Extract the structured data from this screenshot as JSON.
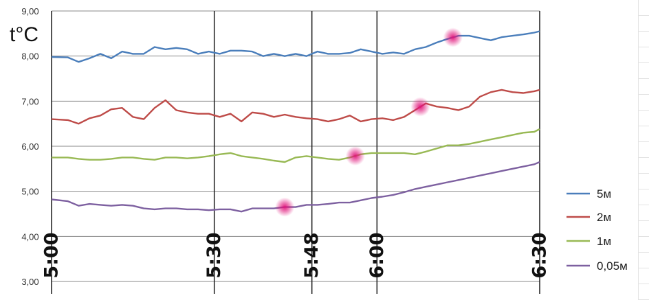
{
  "chart_data": {
    "type": "line",
    "unit_label": "t°C",
    "ylim": [
      3,
      9
    ],
    "y_ticks": [
      "3,00",
      "4,00",
      "5,00",
      "6,00",
      "7,00",
      "8,00",
      "9,00"
    ],
    "x_ticks": [
      {
        "t": 0,
        "label": "5:00"
      },
      {
        "t": 30,
        "label": "5:30"
      },
      {
        "t": 48,
        "label": "5:48"
      },
      {
        "t": 60,
        "label": "6:00"
      },
      {
        "t": 90,
        "label": "6:30"
      }
    ],
    "x": [
      0,
      3,
      5,
      7,
      9,
      11,
      13,
      15,
      17,
      19,
      21,
      23,
      25,
      27,
      29,
      31,
      33,
      35,
      37,
      39,
      41,
      43,
      45,
      47,
      49,
      51,
      53,
      55,
      57,
      59,
      61,
      63,
      65,
      67,
      69,
      71,
      73,
      75,
      77,
      79,
      81,
      83,
      85,
      87,
      89,
      90
    ],
    "series": [
      {
        "name": "5м",
        "color": "#4a7ebb",
        "values": [
          7.98,
          7.97,
          7.87,
          7.95,
          8.05,
          7.95,
          8.1,
          8.05,
          8.05,
          8.2,
          8.15,
          8.18,
          8.15,
          8.05,
          8.1,
          8.05,
          8.12,
          8.12,
          8.1,
          8.0,
          8.05,
          8.0,
          8.05,
          8.0,
          8.1,
          8.05,
          8.05,
          8.07,
          8.15,
          8.1,
          8.05,
          8.08,
          8.05,
          8.15,
          8.2,
          8.3,
          8.38,
          8.45,
          8.45,
          8.4,
          8.35,
          8.42,
          8.45,
          8.48,
          8.52,
          8.55
        ]
      },
      {
        "name": "2м",
        "color": "#be4b48",
        "values": [
          6.6,
          6.58,
          6.5,
          6.62,
          6.68,
          6.82,
          6.85,
          6.65,
          6.6,
          6.85,
          7.02,
          6.8,
          6.75,
          6.72,
          6.72,
          6.65,
          6.72,
          6.55,
          6.75,
          6.72,
          6.65,
          6.7,
          6.65,
          6.62,
          6.6,
          6.55,
          6.6,
          6.68,
          6.55,
          6.6,
          6.62,
          6.58,
          6.65,
          6.8,
          6.95,
          6.88,
          6.85,
          6.8,
          6.88,
          7.1,
          7.2,
          7.25,
          7.2,
          7.18,
          7.22,
          7.25
        ]
      },
      {
        "name": "1м",
        "color": "#98b954",
        "values": [
          5.75,
          5.75,
          5.72,
          5.7,
          5.7,
          5.72,
          5.75,
          5.75,
          5.72,
          5.7,
          5.75,
          5.75,
          5.73,
          5.75,
          5.78,
          5.82,
          5.85,
          5.78,
          5.75,
          5.72,
          5.68,
          5.65,
          5.75,
          5.78,
          5.75,
          5.72,
          5.7,
          5.75,
          5.82,
          5.85,
          5.85,
          5.85,
          5.85,
          5.82,
          5.88,
          5.95,
          6.02,
          6.02,
          6.05,
          6.1,
          6.15,
          6.2,
          6.25,
          6.3,
          6.32,
          6.38
        ]
      },
      {
        "name": "0,05м",
        "color": "#7d60a0",
        "values": [
          4.82,
          4.78,
          4.68,
          4.72,
          4.7,
          4.68,
          4.7,
          4.68,
          4.62,
          4.6,
          4.62,
          4.62,
          4.6,
          4.6,
          4.58,
          4.6,
          4.6,
          4.55,
          4.62,
          4.62,
          4.62,
          4.65,
          4.65,
          4.7,
          4.7,
          4.72,
          4.75,
          4.75,
          4.8,
          4.85,
          4.88,
          4.92,
          4.98,
          5.05,
          5.1,
          5.15,
          5.2,
          5.25,
          5.3,
          5.35,
          5.4,
          5.45,
          5.5,
          5.55,
          5.6,
          5.65
        ]
      }
    ],
    "highlights": [
      {
        "series": 0,
        "t": 74
      },
      {
        "series": 1,
        "t": 68
      },
      {
        "series": 2,
        "t": 56
      },
      {
        "series": 3,
        "t": 43
      }
    ],
    "grid": true,
    "legend_position": "right"
  }
}
